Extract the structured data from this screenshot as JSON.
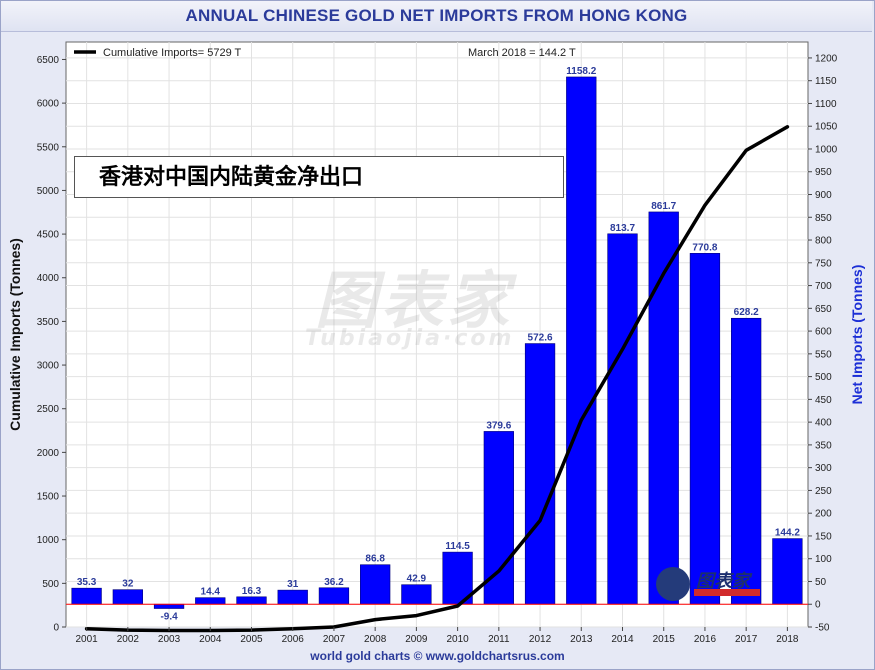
{
  "header": {
    "title": "ANNUAL CHINESE GOLD NET IMPORTS FROM HONG KONG"
  },
  "footer": {
    "source": "world gold charts © www.goldchartsrus.com"
  },
  "annotation": {
    "text": "香港对中国内陆黄金净出口"
  },
  "watermark": {
    "cn": "图表家",
    "en": "Tubiaojia·com"
  },
  "logo": {
    "text": "图表家"
  },
  "colors": {
    "bar": "#0000ff",
    "bar_label": "#2b3b9a",
    "line": "#000000",
    "zero_line": "#ff0000",
    "plot_bg": "#ffffff",
    "grid": "#e2e2e2",
    "title": "#2b3b9a"
  },
  "chart_data": {
    "type": "bar",
    "title": "ANNUAL CHINESE GOLD NET IMPORTS FROM HONG KONG",
    "categories": [
      "2001",
      "2002",
      "2003",
      "2004",
      "2005",
      "2006",
      "2007",
      "2008",
      "2009",
      "2010",
      "2011",
      "2012",
      "2013",
      "2014",
      "2015",
      "2016",
      "2017",
      "2018"
    ],
    "series": [
      {
        "axis": "right",
        "type": "bar",
        "values": [
          35.3,
          32,
          -9.4,
          14.4,
          16.3,
          31,
          36.2,
          86.8,
          42.9,
          114.5,
          379.6,
          572.6,
          1158.2,
          813.7,
          861.7,
          770.8,
          628.2,
          144.2
        ],
        "labels": [
          "35.3",
          "32",
          "-9.4",
          "14.4",
          "16.3",
          "31",
          "36.2",
          "86.8",
          "42.9",
          "114.5",
          "379.6",
          "572.6",
          "1158.2",
          "813.7",
          "861.7",
          "770.8",
          "628.2",
          "144.2"
        ]
      },
      {
        "axis": "left",
        "type": "line",
        "values": [
          -20,
          -35,
          -40,
          -40,
          -35,
          -20,
          0,
          85,
          130,
          240,
          640,
          1220,
          2370,
          3180,
          4050,
          4830,
          5460,
          5729
        ]
      }
    ],
    "legend": {
      "position": "top-left",
      "line_label": "Cumulative Imports= 5729 T",
      "note": "March 2018 = 144.2 T"
    },
    "ylabel_left": "Cumulative Imports (Tonnes)",
    "ylabel_right": "Net Imports (Tonnes)",
    "ylim_left": [
      0,
      6700
    ],
    "yticks_left": [
      0,
      500,
      1000,
      1500,
      2000,
      2500,
      3000,
      3500,
      4000,
      4500,
      5000,
      5500,
      6000,
      6500
    ],
    "ylim_right": [
      -50,
      1235
    ],
    "yticks_right": [
      -50,
      0,
      50,
      100,
      150,
      200,
      250,
      300,
      350,
      400,
      450,
      500,
      550,
      600,
      650,
      700,
      750,
      800,
      850,
      900,
      950,
      1000,
      1050,
      1100,
      1150,
      1200
    ],
    "grid": true
  }
}
